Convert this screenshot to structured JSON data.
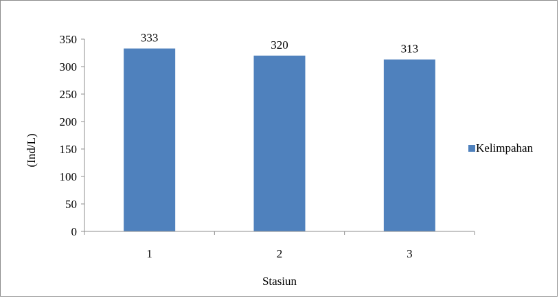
{
  "colors": {
    "bar": "#4F81BD",
    "axis": "#8c8c8c",
    "text": "#000000",
    "frame": "#8c8c8c"
  },
  "chart_data": {
    "type": "bar",
    "title": "",
    "categories": [
      "1",
      "2",
      "3"
    ],
    "series": [
      {
        "name": "Kelimpahan",
        "values": [
          333,
          320,
          313
        ]
      }
    ],
    "data_labels": [
      "333",
      "320",
      "313"
    ],
    "xlabel": "Stasiun",
    "ylabel": "(Ind/L)",
    "ylim": [
      0,
      350
    ],
    "yticks": [
      0,
      50,
      100,
      150,
      200,
      250,
      300,
      350
    ],
    "grid": false,
    "legend": {
      "position": "right",
      "entries": [
        "Kelimpahan"
      ]
    }
  }
}
